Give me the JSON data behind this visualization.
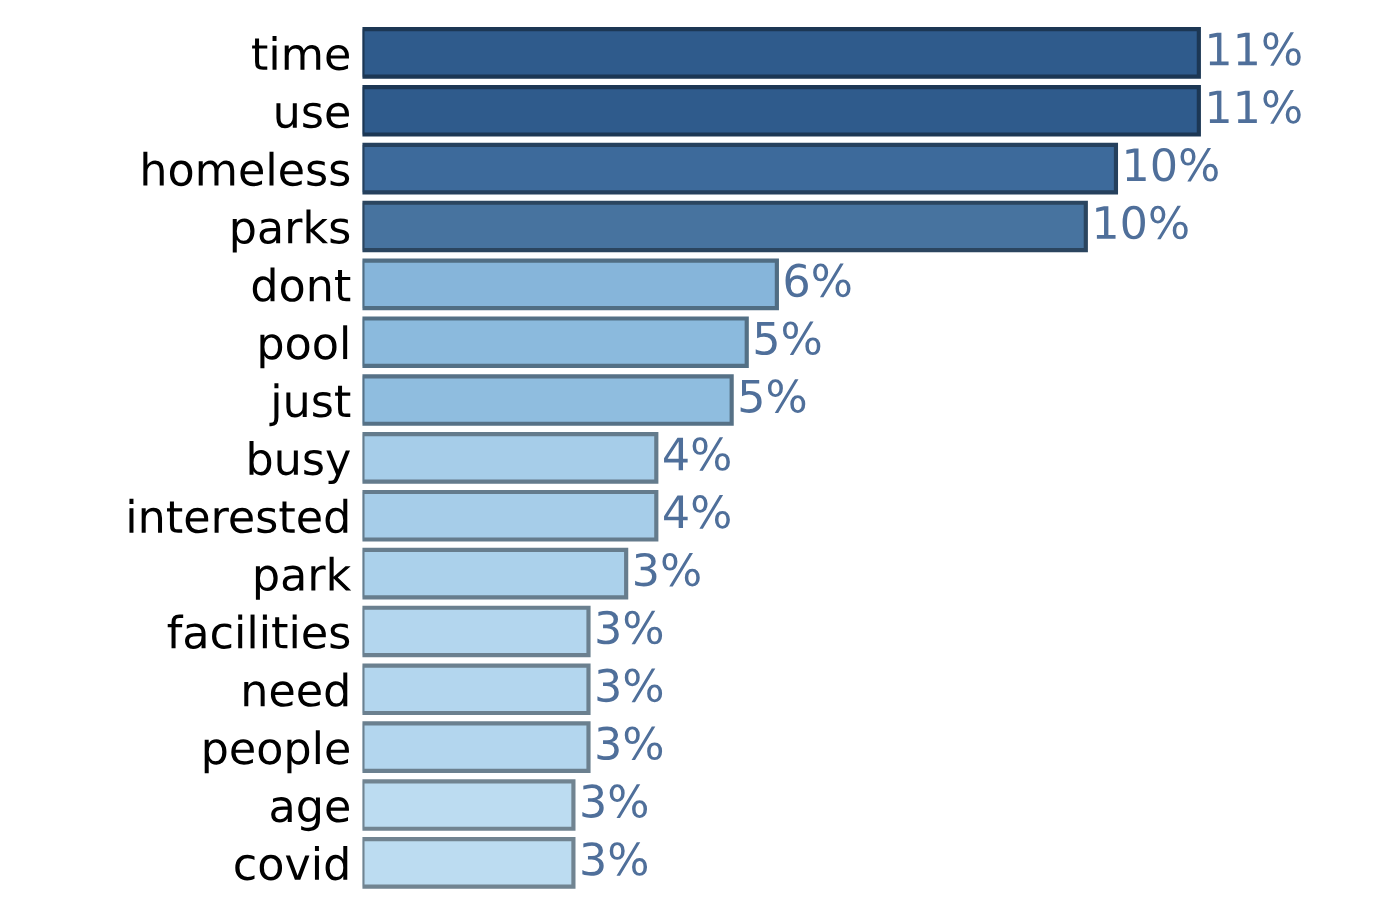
{
  "chart_data": {
    "type": "bar",
    "orientation": "horizontal",
    "categories": [
      "time",
      "use",
      "homeless",
      "parks",
      "dont",
      "pool",
      "just",
      "busy",
      "interested",
      "park",
      "facilities",
      "need",
      "people",
      "age",
      "covid"
    ],
    "values": [
      11.1,
      11.1,
      10.0,
      9.6,
      5.5,
      5.1,
      4.9,
      3.9,
      3.9,
      3.5,
      3.0,
      3.0,
      3.0,
      2.8,
      2.8
    ],
    "value_labels": [
      "11%",
      "11%",
      "10%",
      "10%",
      "6%",
      "5%",
      "5%",
      "4%",
      "4%",
      "3%",
      "3%",
      "3%",
      "3%",
      "3%",
      "3%"
    ],
    "colors": [
      "#2f5b8c",
      "#2f5b8c",
      "#3d6a9b",
      "#47739f",
      "#86b5da",
      "#8bbadd",
      "#8fbddf",
      "#a6cde9",
      "#a6cde9",
      "#abd1eb",
      "#b3d6ee",
      "#b3d6ee",
      "#b3d6ee",
      "#bcdcf1",
      "#bcdcf1"
    ],
    "grid": false
  }
}
